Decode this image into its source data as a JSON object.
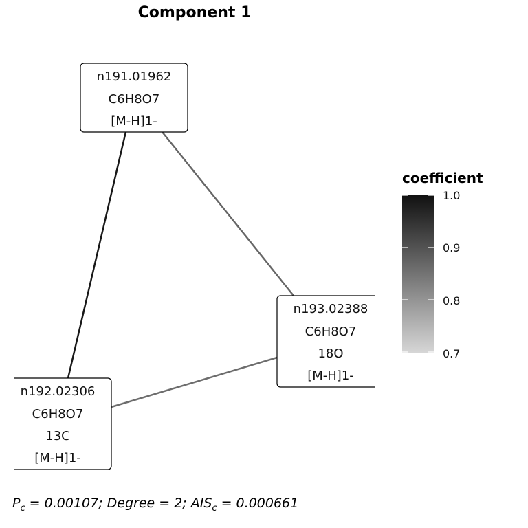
{
  "title": "Component 1",
  "nodes": [
    {
      "id": "n1",
      "lines": [
        "n191.01962",
        "C6H8O7",
        "[M-H]1-"
      ]
    },
    {
      "id": "n2",
      "lines": [
        "n192.02306",
        "C6H8O7",
        "13C",
        "[M-H]1-"
      ]
    },
    {
      "id": "n3",
      "lines": [
        "n193.02388",
        "C6H8O7",
        "18O",
        "[M-H]1-"
      ]
    }
  ],
  "edges": [
    {
      "from": "n1",
      "to": "n2",
      "coefficient": 0.99
    },
    {
      "from": "n1",
      "to": "n3",
      "coefficient": 0.87
    },
    {
      "from": "n2",
      "to": "n3",
      "coefficient": 0.86
    }
  ],
  "legend": {
    "title": "coefficient",
    "range": [
      0.7,
      1.0
    ],
    "ticks": [
      "1.0",
      "0.9",
      "0.8",
      "0.7"
    ],
    "color_low": "#d6d6d6",
    "color_high": "#111111"
  },
  "footer": {
    "p_symbol": "P",
    "p_sub": "c",
    "p_value": " = 0.00107; Degree = 2; ",
    "ais_symbol": "AIS",
    "ais_sub": "c",
    "ais_value": " = 0.000661"
  }
}
